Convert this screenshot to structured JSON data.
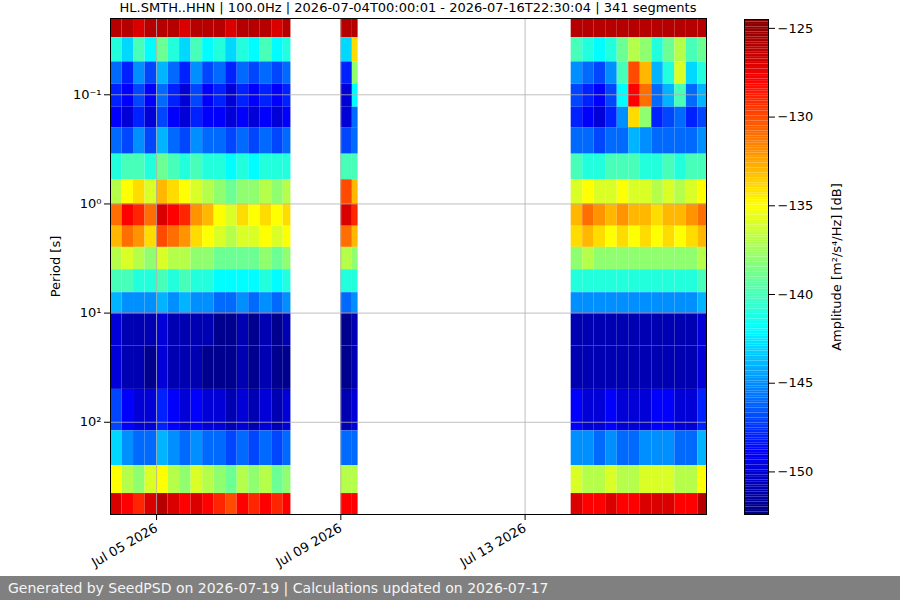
{
  "chart_data": {
    "type": "heatmap",
    "title": "HL.SMTH..HHN | 100.0Hz | 2026-07-04T00:00:01 - 2026-07-16T22:30:04 | 341 segments",
    "y_label": "Period [s]",
    "caption": "Generated by SeedPSD on 2026-07-19 | Calculations updated on 2026-07-17",
    "log": "y",
    "grid": true,
    "color": "jet",
    "xlim": [
      "2026-07-04T00:00:01",
      "2026-07-16T22:30:04"
    ],
    "xticks": [
      {
        "value": "2026-07-05",
        "label": "Jul 05 2026"
      },
      {
        "value": "2026-07-09",
        "label": "Jul 09 2026"
      },
      {
        "value": "2026-07-13",
        "label": "Jul 13 2026"
      }
    ],
    "ylim": [
      0.02,
      700
    ],
    "yticks": [
      {
        "value": 0.1,
        "label": "10⁻¹"
      },
      {
        "value": 1,
        "label": "10⁰"
      },
      {
        "value": 10,
        "label": "10¹"
      },
      {
        "value": 100,
        "label": "10²"
      }
    ],
    "cells": {
      "period_edges": [
        0.02,
        0.03,
        0.05,
        0.08,
        0.13,
        0.2,
        0.35,
        0.6,
        1,
        1.6,
        2.5,
        4,
        6.5,
        10,
        20,
        50,
        120,
        250,
        450,
        700
      ],
      "time_start": [
        "2026-07-04T00:00",
        "2026-07-04T06:00",
        "2026-07-04T12:00",
        "2026-07-04T18:00",
        "2026-07-05T00:00",
        "2026-07-05T06:00",
        "2026-07-05T12:00",
        "2026-07-05T18:00",
        "2026-07-06T00:00",
        "2026-07-06T06:00",
        "2026-07-06T12:00",
        "2026-07-06T18:00",
        "2026-07-07T00:00",
        "2026-07-07T06:00",
        "2026-07-07T12:00",
        "2026-07-07T18:00",
        "2026-07-09T00:00",
        "2026-07-09T06:00",
        "2026-07-14T00:00",
        "2026-07-14T06:00",
        "2026-07-14T12:00",
        "2026-07-14T18:00",
        "2026-07-15T00:00",
        "2026-07-15T06:00",
        "2026-07-15T12:00",
        "2026-07-15T18:00",
        "2026-07-16T00:00",
        "2026-07-16T06:00",
        "2026-07-16T12:00",
        "2026-07-16T18:00"
      ],
      "time_end": [
        "2026-07-04T06:00",
        "2026-07-04T12:00",
        "2026-07-04T18:00",
        "2026-07-05T00:00",
        "2026-07-05T06:00",
        "2026-07-05T12:00",
        "2026-07-05T18:00",
        "2026-07-06T00:00",
        "2026-07-06T06:00",
        "2026-07-06T12:00",
        "2026-07-06T18:00",
        "2026-07-07T00:00",
        "2026-07-07T06:00",
        "2026-07-07T12:00",
        "2026-07-07T18:00",
        "2026-07-07T22:00",
        "2026-07-09T06:00",
        "2026-07-09T09:00",
        "2026-07-14T06:00",
        "2026-07-14T12:00",
        "2026-07-14T18:00",
        "2026-07-15T00:00",
        "2026-07-15T06:00",
        "2026-07-15T12:00",
        "2026-07-15T18:00",
        "2026-07-16T00:00",
        "2026-07-16T06:00",
        "2026-07-16T12:00",
        "2026-07-16T18:00",
        "2026-07-16T23:00"
      ],
      "values": [
        [
          -126,
          -141,
          -146,
          -148,
          -149,
          -146,
          -141,
          -137,
          -131,
          -133,
          -137,
          -140,
          -144,
          -150,
          -150,
          -147,
          -143,
          -135,
          -127
        ],
        [
          -126,
          -143,
          -148,
          -149,
          -150,
          -147,
          -140,
          -135,
          -128,
          -131,
          -136,
          -140,
          -145,
          -151,
          -151,
          -149,
          -145,
          -137,
          -128
        ],
        [
          -127,
          -140,
          -145,
          -147,
          -148,
          -145,
          -140,
          -134,
          -129,
          -132,
          -137,
          -141,
          -145,
          -151,
          -151,
          -150,
          -146,
          -138,
          -129
        ],
        [
          -126,
          -142,
          -147,
          -149,
          -150,
          -147,
          -141,
          -136,
          -131,
          -134,
          -138,
          -141,
          -145,
          -151,
          -152,
          -150,
          -146,
          -136,
          -127
        ],
        [
          -126,
          -139,
          -144,
          -146,
          -147,
          -144,
          -139,
          -133,
          -127,
          -130,
          -136,
          -140,
          -144,
          -150,
          -150,
          -148,
          -144,
          -135,
          -126
        ],
        [
          -126,
          -141,
          -146,
          -148,
          -149,
          -146,
          -140,
          -134,
          -128,
          -131,
          -137,
          -141,
          -145,
          -151,
          -151,
          -149,
          -145,
          -137,
          -127
        ],
        [
          -127,
          -143,
          -148,
          -150,
          -150,
          -147,
          -141,
          -135,
          -129,
          -132,
          -137,
          -140,
          -144,
          -151,
          -151,
          -150,
          -146,
          -138,
          -128
        ],
        [
          -126,
          -140,
          -145,
          -147,
          -148,
          -145,
          -140,
          -136,
          -132,
          -134,
          -138,
          -141,
          -145,
          -151,
          -151,
          -149,
          -145,
          -136,
          -127
        ],
        [
          -126,
          -142,
          -147,
          -149,
          -149,
          -146,
          -141,
          -137,
          -133,
          -135,
          -138,
          -141,
          -145,
          -151,
          -152,
          -150,
          -146,
          -137,
          -128
        ],
        [
          -126,
          -141,
          -146,
          -148,
          -149,
          -146,
          -141,
          -138,
          -135,
          -136,
          -139,
          -142,
          -146,
          -152,
          -152,
          -150,
          -146,
          -138,
          -129
        ],
        [
          -127,
          -143,
          -148,
          -150,
          -150,
          -147,
          -142,
          -139,
          -136,
          -137,
          -139,
          -142,
          -146,
          -152,
          -152,
          -151,
          -147,
          -139,
          -130
        ],
        [
          -126,
          -141,
          -146,
          -148,
          -149,
          -146,
          -141,
          -138,
          -134,
          -136,
          -139,
          -142,
          -145,
          -151,
          -151,
          -150,
          -146,
          -137,
          -128
        ],
        [
          -126,
          -142,
          -147,
          -149,
          -150,
          -147,
          -142,
          -138,
          -135,
          -136,
          -139,
          -142,
          -146,
          -152,
          -152,
          -151,
          -147,
          -138,
          -129
        ],
        [
          -126,
          -140,
          -146,
          -148,
          -149,
          -146,
          -141,
          -137,
          -134,
          -135,
          -138,
          -141,
          -145,
          -151,
          -151,
          -150,
          -146,
          -137,
          -128
        ],
        [
          -127,
          -142,
          -147,
          -149,
          -150,
          -147,
          -141,
          -138,
          -135,
          -136,
          -139,
          -142,
          -146,
          -152,
          -152,
          -151,
          -147,
          -139,
          -129
        ],
        [
          -126,
          -141,
          -146,
          -148,
          -149,
          -146,
          -141,
          -137,
          -134,
          -135,
          -138,
          -141,
          -145,
          -151,
          -152,
          -150,
          -146,
          -138,
          -128
        ],
        [
          -126,
          -143,
          -148,
          -150,
          -150,
          -147,
          -140,
          -130,
          -127,
          -131,
          -137,
          -141,
          -146,
          -152,
          -152,
          -151,
          -146,
          -137,
          -128
        ],
        [
          -126,
          -134,
          -138,
          -142,
          -146,
          -146,
          -140,
          -133,
          -129,
          -133,
          -138,
          -141,
          -145,
          -151,
          -151,
          -150,
          -146,
          -137,
          -128
        ],
        [
          -126,
          -140,
          -145,
          -147,
          -148,
          -146,
          -140,
          -136,
          -133,
          -134,
          -138,
          -141,
          -145,
          -151,
          -151,
          -149,
          -145,
          -136,
          -127
        ],
        [
          -126,
          -141,
          -146,
          -148,
          -149,
          -146,
          -141,
          -135,
          -131,
          -133,
          -137,
          -141,
          -145,
          -151,
          -151,
          -150,
          -145,
          -137,
          -128
        ],
        [
          -126,
          -142,
          -147,
          -149,
          -150,
          -147,
          -141,
          -136,
          -132,
          -134,
          -138,
          -141,
          -145,
          -151,
          -151,
          -150,
          -146,
          -137,
          -128
        ],
        [
          -126,
          -141,
          -145,
          -147,
          -148,
          -146,
          -140,
          -136,
          -133,
          -135,
          -138,
          -141,
          -145,
          -151,
          -151,
          -149,
          -145,
          -136,
          -127
        ],
        [
          -126,
          -139,
          -140,
          -142,
          -145,
          -146,
          -140,
          -135,
          -132,
          -134,
          -138,
          -141,
          -145,
          -151,
          -151,
          -150,
          -146,
          -137,
          -128
        ],
        [
          -126,
          -137,
          -130,
          -128,
          -134,
          -144,
          -140,
          -136,
          -133,
          -135,
          -138,
          -141,
          -145,
          -151,
          -151,
          -150,
          -146,
          -137,
          -128
        ],
        [
          -126,
          -138,
          -133,
          -131,
          -138,
          -145,
          -141,
          -136,
          -133,
          -134,
          -138,
          -141,
          -145,
          -151,
          -151,
          -150,
          -145,
          -136,
          -127
        ],
        [
          -126,
          -141,
          -144,
          -146,
          -148,
          -146,
          -141,
          -137,
          -134,
          -135,
          -138,
          -141,
          -145,
          -151,
          -151,
          -149,
          -145,
          -136,
          -127
        ],
        [
          -126,
          -139,
          -141,
          -144,
          -147,
          -146,
          -140,
          -136,
          -133,
          -134,
          -138,
          -141,
          -145,
          -151,
          -151,
          -149,
          -145,
          -136,
          -127
        ],
        [
          -126,
          -137,
          -136,
          -140,
          -146,
          -146,
          -141,
          -137,
          -133,
          -135,
          -138,
          -141,
          -145,
          -151,
          -151,
          -150,
          -146,
          -137,
          -128
        ],
        [
          -126,
          -140,
          -143,
          -146,
          -148,
          -146,
          -140,
          -136,
          -132,
          -134,
          -138,
          -141,
          -145,
          -151,
          -151,
          -150,
          -146,
          -137,
          -128
        ],
        [
          -126,
          -139,
          -141,
          -144,
          -147,
          -145,
          -140,
          -135,
          -131,
          -133,
          -137,
          -140,
          -144,
          -150,
          -150,
          -148,
          -144,
          -135,
          -126
        ]
      ]
    },
    "colorbar": {
      "label": "Amplitude [m²/s⁴/Hz] [dB]",
      "range": [
        -152.4,
        -124.5
      ],
      "ticks": [
        {
          "value": -125,
          "label": "−125"
        },
        {
          "value": -130,
          "label": "−130"
        },
        {
          "value": -135,
          "label": "−135"
        },
        {
          "value": -140,
          "label": "−140"
        },
        {
          "value": -145,
          "label": "−145"
        },
        {
          "value": -150,
          "label": "−150"
        }
      ]
    }
  }
}
